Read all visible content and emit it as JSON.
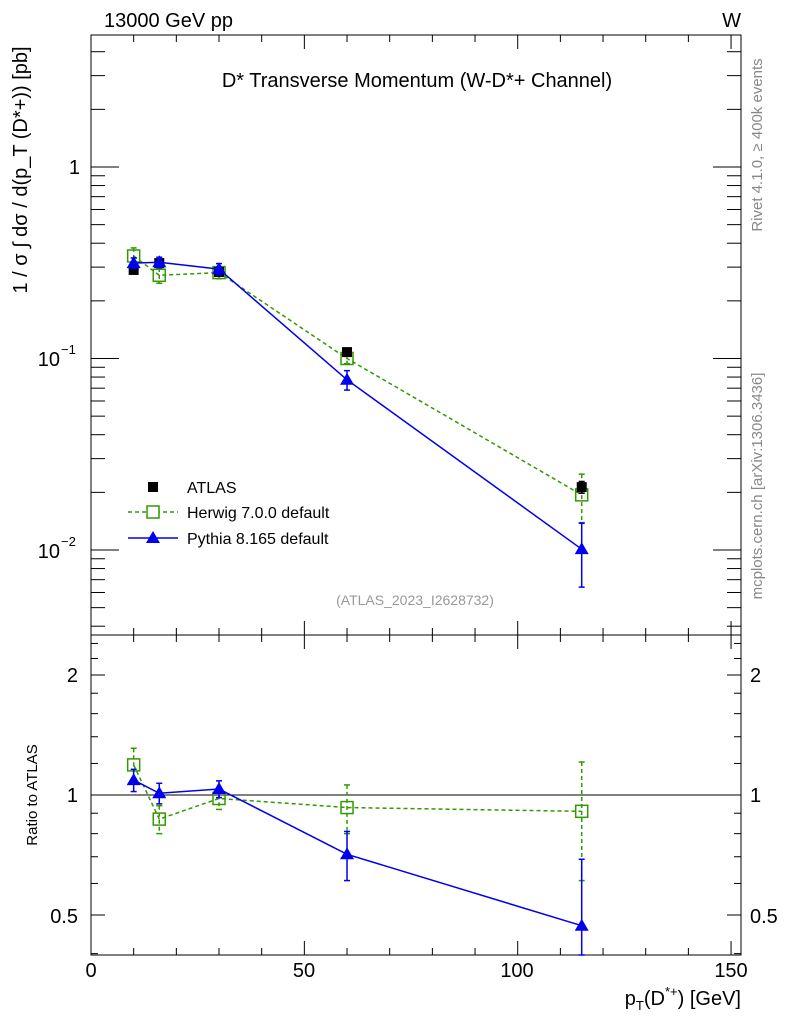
{
  "header": {
    "left": "13000 GeV pp",
    "right": "W"
  },
  "side_labels": {
    "rivet": "Rivet 4.1.0, ≥ 400k events",
    "mcplots": "mcplots.cern.ch [arXiv:1306.3436]"
  },
  "colors": {
    "atlas": "#000000",
    "herwig": "#339900",
    "pythia": "#0000ee",
    "side_text": "#888888"
  },
  "chart_data": [
    {
      "type": "line",
      "title": "D* Transverse Momentum (W-D*+ Channel)",
      "analysis_id": "(ATLAS_2023_I2628732)",
      "ylabel": "1 / σ ∫ dσ / d(p_T (D*+)) [pb]",
      "yscale": "log",
      "xlim": [
        0,
        152.3
      ],
      "ylim": [
        0.0036,
        4.9
      ],
      "yticks": [
        {
          "base": "1",
          "exp": ""
        },
        {
          "base": "10",
          "exp": "−1"
        },
        {
          "base": "10",
          "exp": "−2"
        }
      ],
      "ytick_values": [
        1,
        0.1,
        0.01
      ],
      "legend_position": "bottom-left",
      "x": [
        10,
        16,
        30,
        60,
        115
      ],
      "series": [
        {
          "name": "ATLAS",
          "style": "data",
          "values": [
            0.29,
            0.315,
            0.283,
            0.108,
            0.0213
          ],
          "errors": [
            0.01,
            0.01,
            0.01,
            0.004,
            0.0015
          ]
        },
        {
          "name": "Herwig 7.0.0 default",
          "style": "dashed-open-square",
          "values": [
            0.343,
            0.272,
            0.281,
            0.1,
            0.0194
          ],
          "errors": [
            0.035,
            0.025,
            0.02,
            0.006,
            0.0055
          ]
        },
        {
          "name": "Pythia 8.165 default",
          "style": "solid-triangle",
          "values": [
            0.315,
            0.318,
            0.293,
            0.0774,
            0.0101
          ],
          "errors": [
            0.02,
            0.02,
            0.02,
            0.009,
            0.0037
          ]
        }
      ]
    },
    {
      "type": "line",
      "ylabel": "Ratio to ATLAS",
      "xlabel": "p_T(D*+) [GeV]",
      "xlabel_parts": {
        "p": "p",
        "sub": "T",
        "open": "(D",
        "sup": "*+",
        "close": ") [GeV]"
      },
      "yscale": "log",
      "ylim": [
        0.397,
        2.52
      ],
      "xticks": [
        "0",
        "50",
        "100",
        "150"
      ],
      "xtick_values": [
        0,
        50,
        100,
        150
      ],
      "yticks": [
        "2",
        "1",
        "0.5"
      ],
      "ytick_values": [
        2,
        1,
        0.5
      ],
      "x": [
        10,
        16,
        30,
        60,
        115
      ],
      "series": [
        {
          "name": "Herwig 7.0.0 default",
          "values": [
            1.19,
            0.87,
            0.98,
            0.93,
            0.91
          ],
          "errors": [
            0.12,
            0.07,
            0.06,
            0.13,
            0.3
          ]
        },
        {
          "name": "Pythia 8.165 default",
          "values": [
            1.09,
            1.01,
            1.035,
            0.71,
            0.47
          ],
          "errors": [
            0.07,
            0.06,
            0.05,
            0.1,
            0.22
          ]
        }
      ]
    }
  ]
}
